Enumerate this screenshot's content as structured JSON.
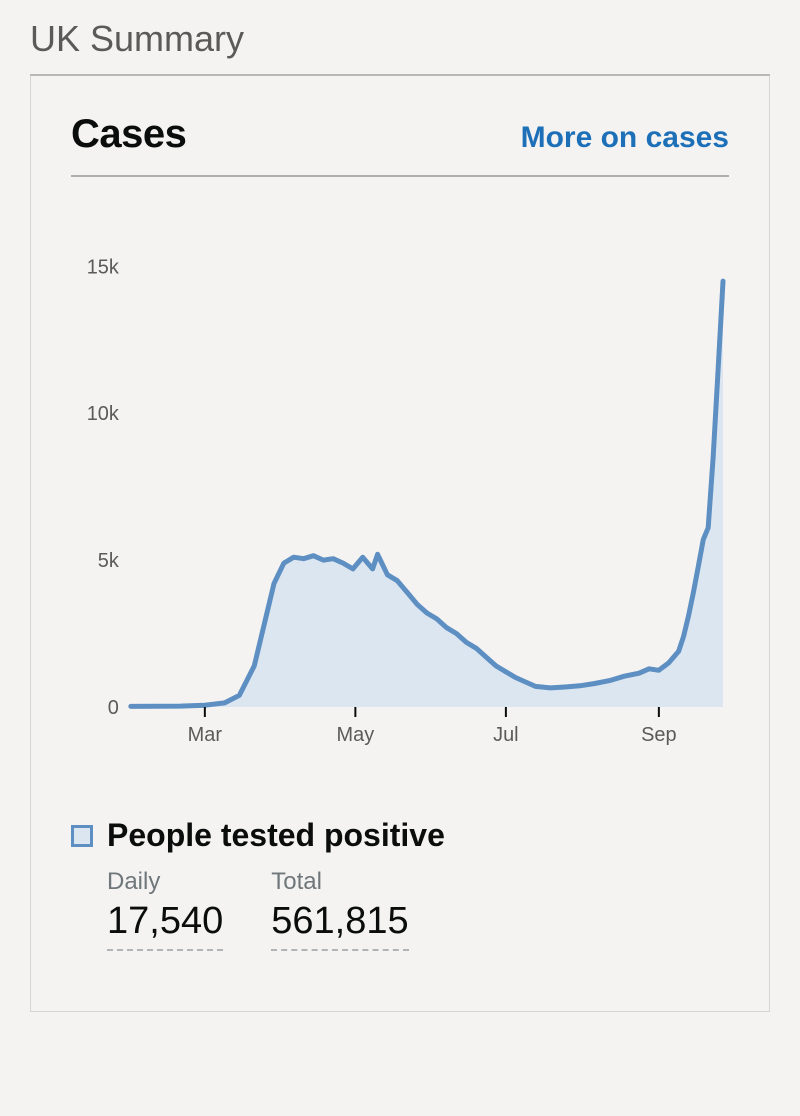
{
  "page": {
    "title": "UK Summary"
  },
  "panel": {
    "title": "Cases",
    "link_label": "More on cases"
  },
  "chart": {
    "type": "area",
    "background_color": "#f4f3f2",
    "line_color": "#5e8fc2",
    "fill_color": "#dbe6f1",
    "fill_opacity": 1.0,
    "line_width": 5,
    "axis_color": "#0b0c0c",
    "axis_width": 2,
    "tick_length": 10,
    "tick_label_color": "#5b5a58",
    "tick_label_fontsize": 20,
    "ylim": [
      0,
      16000
    ],
    "yticks": [
      {
        "v": 0,
        "label": "0"
      },
      {
        "v": 5000,
        "label": "5k"
      },
      {
        "v": 10000,
        "label": "10k"
      },
      {
        "v": 15000,
        "label": "15k"
      }
    ],
    "xlim": [
      0,
      240
    ],
    "xticks": [
      {
        "v": 30,
        "label": "Mar"
      },
      {
        "v": 91,
        "label": "May"
      },
      {
        "v": 152,
        "label": "Jul"
      },
      {
        "v": 214,
        "label": "Sep"
      }
    ],
    "series": {
      "x": [
        0,
        10,
        20,
        30,
        38,
        44,
        50,
        54,
        58,
        62,
        66,
        70,
        74,
        78,
        82,
        86,
        90,
        94,
        98,
        100,
        104,
        108,
        112,
        116,
        120,
        124,
        128,
        132,
        136,
        140,
        144,
        148,
        152,
        156,
        160,
        164,
        170,
        176,
        182,
        188,
        194,
        200,
        206,
        210,
        214,
        218,
        222,
        224,
        226,
        228,
        230,
        232,
        234,
        236,
        238,
        240
      ],
      "y": [
        20,
        25,
        30,
        60,
        140,
        400,
        1400,
        2800,
        4200,
        4900,
        5100,
        5050,
        5150,
        5000,
        5050,
        4900,
        4700,
        5100,
        4700,
        5200,
        4500,
        4300,
        3900,
        3500,
        3200,
        3000,
        2700,
        2500,
        2200,
        2000,
        1700,
        1400,
        1200,
        1000,
        850,
        700,
        650,
        680,
        720,
        800,
        900,
        1050,
        1150,
        1300,
        1250,
        1500,
        1900,
        2400,
        3100,
        3900,
        4800,
        5700,
        6100,
        8500,
        11500,
        14500
      ]
    }
  },
  "legend": {
    "title": "People tested positive",
    "swatch_fill": "#dbe6f1",
    "swatch_border": "#5e8fc2",
    "stats": [
      {
        "label": "Daily",
        "value": "17,540"
      },
      {
        "label": "Total",
        "value": "561,815"
      }
    ]
  }
}
